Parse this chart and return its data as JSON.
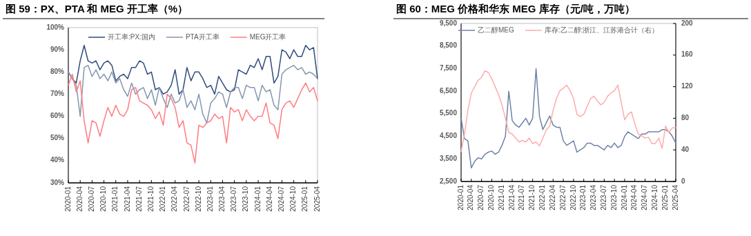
{
  "chart_data": [
    {
      "type": "line",
      "title": "图 59：PX、PTA 和 MEG 开工率（%）",
      "legend": "top",
      "grid": false,
      "line_style": "solid",
      "marker": "none",
      "x": [
        "2020-01",
        "2020-02",
        "2020-03",
        "2020-04",
        "2020-05",
        "2020-06",
        "2020-07",
        "2020-08",
        "2020-09",
        "2020-10",
        "2020-11",
        "2020-12",
        "2021-01",
        "2021-02",
        "2021-03",
        "2021-04",
        "2021-05",
        "2021-06",
        "2021-07",
        "2021-08",
        "2021-09",
        "2021-10",
        "2021-11",
        "2021-12",
        "2022-01",
        "2022-02",
        "2022-03",
        "2022-04",
        "2022-05",
        "2022-06",
        "2022-07",
        "2022-08",
        "2022-09",
        "2022-10",
        "2022-11",
        "2022-12",
        "2023-01",
        "2023-02",
        "2023-03",
        "2023-04",
        "2023-05",
        "2023-06",
        "2023-07",
        "2023-08",
        "2023-09",
        "2023-10",
        "2023-11",
        "2023-12",
        "2024-01",
        "2024-02",
        "2024-03",
        "2024-04",
        "2024-05",
        "2024-06",
        "2024-07",
        "2024-08",
        "2024-09",
        "2024-10",
        "2024-11",
        "2024-12",
        "2025-01",
        "2025-02",
        "2025-03",
        "2025-04"
      ],
      "xlim": [
        "2020-01",
        "2025-04"
      ],
      "xticks": [
        "2020-01",
        "2020-04",
        "2020-07",
        "2020-10",
        "2021-01",
        "2021-04",
        "2021-07",
        "2021-10",
        "2022-01",
        "2022-04",
        "2022-07",
        "2022-10",
        "2023-01",
        "2023-04",
        "2023-07",
        "2023-10",
        "2024-01",
        "2024-04",
        "2024-07",
        "2024-10",
        "2025-01",
        "2025-04"
      ],
      "ylim": [
        30,
        100
      ],
      "yticks": [
        {
          "value": 30,
          "label": "30%"
        },
        {
          "value": 40,
          "label": "40%"
        },
        {
          "value": 50,
          "label": "50%"
        },
        {
          "value": 60,
          "label": "60%"
        },
        {
          "value": 70,
          "label": "70%"
        },
        {
          "value": 80,
          "label": "80%"
        },
        {
          "value": 90,
          "label": "90%"
        },
        {
          "value": 100,
          "label": "100%"
        }
      ],
      "series": [
        {
          "name": "开工率:PX:国内",
          "color": "#2f4b7c",
          "values": [
            80,
            77,
            75,
            85,
            92,
            85,
            84,
            85,
            81,
            84,
            85,
            83,
            76,
            78,
            79,
            77,
            82,
            82,
            85,
            84,
            79,
            80,
            72,
            73,
            70,
            71,
            74,
            81,
            70,
            72,
            82,
            76,
            80,
            80,
            77,
            73,
            74,
            70,
            78,
            75,
            72,
            71,
            72,
            81,
            80,
            79,
            83,
            82,
            86,
            81,
            87,
            87,
            75,
            78,
            90,
            89,
            86,
            90,
            87,
            87,
            92,
            90,
            91,
            77
          ]
        },
        {
          "name": "PTA开工率",
          "color": "#8496b0",
          "values": [
            80,
            77,
            74,
            60,
            82,
            83,
            78,
            81,
            77,
            79,
            76,
            80,
            75,
            77,
            72,
            69,
            75,
            70,
            72,
            73,
            68,
            72,
            65,
            73,
            68,
            64,
            70,
            66,
            67,
            72,
            64,
            67,
            63,
            70,
            61,
            57,
            66,
            68,
            71,
            70,
            64,
            71,
            73,
            73,
            68,
            74,
            73,
            73,
            67,
            74,
            71,
            72,
            65,
            63,
            79,
            81,
            82,
            83,
            81,
            82,
            79,
            80,
            79,
            77
          ]
        },
        {
          "name": "MEG开工率",
          "color": "#ff7c80",
          "values": [
            74,
            79,
            71,
            76,
            58,
            48,
            58,
            57,
            51,
            58,
            64,
            60,
            65,
            61,
            60,
            63,
            72,
            73,
            67,
            66,
            65,
            63,
            59,
            62,
            56,
            70,
            68,
            64,
            55,
            58,
            48,
            47,
            39,
            56,
            55,
            57,
            58,
            61,
            59,
            60,
            48,
            64,
            62,
            63,
            58,
            63,
            60,
            58,
            60,
            60,
            66,
            57,
            56,
            50,
            63,
            66,
            67,
            64,
            68,
            72,
            75,
            71,
            73,
            67
          ]
        }
      ]
    },
    {
      "type": "line",
      "title": "图 60：MEG 价格和华东 MEG 库存（元/吨，万吨）",
      "legend": "top",
      "grid": false,
      "line_style": "solid",
      "marker": "none",
      "x": [
        "2020-01",
        "2020-02",
        "2020-03",
        "2020-04",
        "2020-05",
        "2020-06",
        "2020-07",
        "2020-08",
        "2020-09",
        "2020-10",
        "2020-11",
        "2020-12",
        "2021-01",
        "2021-02",
        "2021-03",
        "2021-04",
        "2021-05",
        "2021-06",
        "2021-07",
        "2021-08",
        "2021-09",
        "2021-10",
        "2021-11",
        "2021-12",
        "2022-01",
        "2022-02",
        "2022-03",
        "2022-04",
        "2022-05",
        "2022-06",
        "2022-07",
        "2022-08",
        "2022-09",
        "2022-10",
        "2022-11",
        "2022-12",
        "2023-01",
        "2023-02",
        "2023-03",
        "2023-04",
        "2023-05",
        "2023-06",
        "2023-07",
        "2023-08",
        "2023-09",
        "2023-10",
        "2023-11",
        "2023-12",
        "2024-01",
        "2024-02",
        "2024-03",
        "2024-04",
        "2024-05",
        "2024-06",
        "2024-07",
        "2024-08",
        "2024-09",
        "2024-10",
        "2024-11",
        "2024-12",
        "2025-01",
        "2025-02",
        "2025-03",
        "2025-04"
      ],
      "xlim": [
        "2020-01",
        "2025-04"
      ],
      "xticks": [
        "2020-01",
        "2020-04",
        "2020-07",
        "2020-10",
        "2021-01",
        "2021-04",
        "2021-07",
        "2021-10",
        "2022-01",
        "2022-04",
        "2022-07",
        "2022-10",
        "2023-01",
        "2023-04",
        "2023-07",
        "2023-10",
        "2024-01",
        "2024-04",
        "2024-07",
        "2024-10",
        "2025-01",
        "2025-04"
      ],
      "ylim": [
        2500,
        9500
      ],
      "yticks": [
        {
          "value": 2500,
          "label": "2,500"
        },
        {
          "value": 3500,
          "label": "3,500"
        },
        {
          "value": 4500,
          "label": "4,500"
        },
        {
          "value": 5500,
          "label": "5,500"
        },
        {
          "value": 6500,
          "label": "6,500"
        },
        {
          "value": 7500,
          "label": "7,500"
        },
        {
          "value": 8500,
          "label": "8,500"
        },
        {
          "value": 9500,
          "label": "9,500"
        }
      ],
      "y2lim": [
        0,
        200
      ],
      "y2ticks": [
        0,
        40,
        80,
        120,
        160,
        200
      ],
      "series": [
        {
          "name": "乙二醇MEG",
          "color": "#6f82a6",
          "values": [
            5300,
            4400,
            4300,
            3100,
            3400,
            3550,
            3500,
            3700,
            3800,
            3850,
            3700,
            3800,
            4100,
            4500,
            6500,
            5200,
            5000,
            4900,
            5100,
            5300,
            5000,
            5300,
            7500,
            5400,
            4800,
            5100,
            5400,
            5000,
            4900,
            4900,
            4300,
            4100,
            4200,
            4300,
            3800,
            3900,
            4000,
            4200,
            4200,
            4100,
            4100,
            4000,
            3900,
            4100,
            4000,
            4200,
            4000,
            4100,
            4500,
            4700,
            4600,
            4500,
            4400,
            4600,
            4600,
            4700,
            4700,
            4700,
            4700,
            4800,
            4800,
            4700,
            4500,
            4200
          ]
        },
        {
          "name": "库存:乙二醇:浙江、江苏港合计（右）",
          "color": "#ffabab",
          "axis": "y2",
          "values": [
            38,
            60,
            90,
            112,
            120,
            128,
            132,
            140,
            138,
            130,
            120,
            110,
            97,
            80,
            62,
            60,
            55,
            50,
            52,
            50,
            55,
            48,
            50,
            45,
            55,
            65,
            70,
            90,
            105,
            115,
            118,
            122,
            115,
            105,
            85,
            82,
            85,
            95,
            105,
            108,
            102,
            97,
            100,
            108,
            112,
            115,
            122,
            100,
            78,
            85,
            88,
            73,
            60,
            58,
            55,
            56,
            48,
            48,
            55,
            42,
            70,
            62,
            68,
            68
          ]
        }
      ]
    }
  ]
}
